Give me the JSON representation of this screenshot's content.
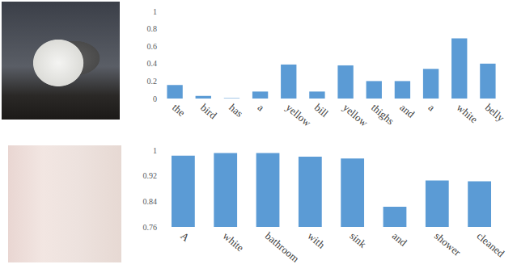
{
  "chart_data": [
    {
      "type": "bar",
      "categories": [
        "the",
        "bird",
        "has",
        "a",
        "yellow",
        "bill",
        "yellow",
        "thighs",
        "and",
        "a",
        "white",
        "belly"
      ],
      "values": [
        0.155,
        0.03,
        0.005,
        0.08,
        0.39,
        0.08,
        0.38,
        0.2,
        0.2,
        0.34,
        0.69,
        0.4
      ],
      "color": "#5b9bd5",
      "ylim": [
        0,
        1
      ],
      "yticks": [
        0,
        0.2,
        0.4,
        0.6,
        0.8,
        1
      ],
      "grid": false
    },
    {
      "type": "bar",
      "categories": [
        "A",
        "white",
        "bathroom",
        "with",
        "sink",
        "and",
        "shower",
        "cleaned"
      ],
      "values": [
        0.983,
        0.991,
        0.991,
        0.98,
        0.974,
        0.823,
        0.905,
        0.903
      ],
      "color": "#5b9bd5",
      "ylim": [
        0.76,
        1
      ],
      "yticks": [
        0.76,
        0.84,
        0.92,
        1
      ],
      "grid": false
    }
  ]
}
